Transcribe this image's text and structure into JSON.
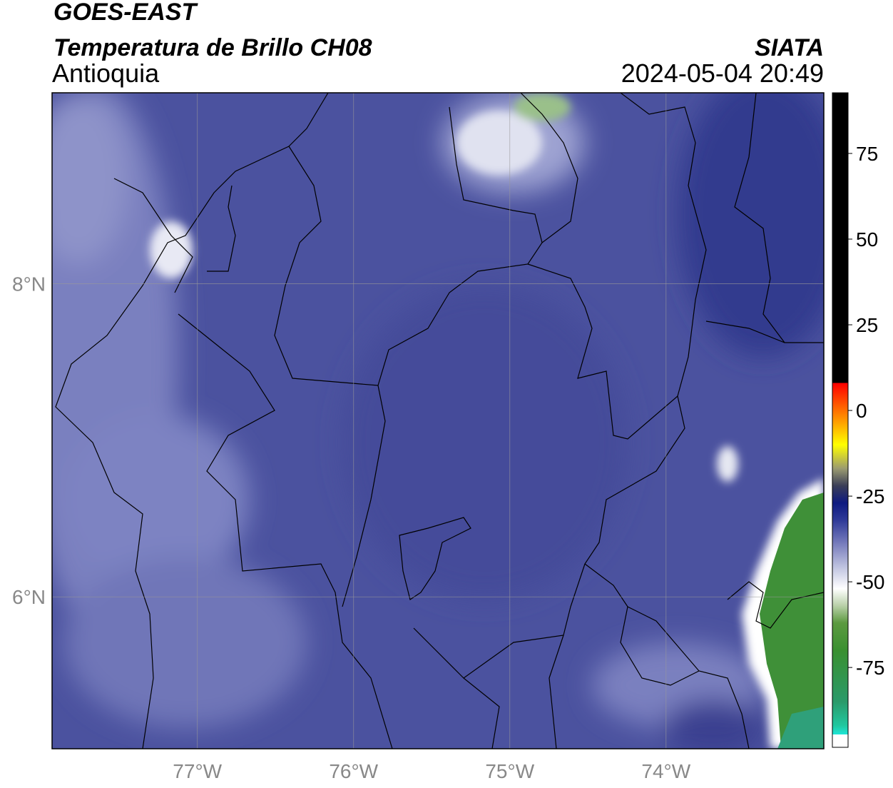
{
  "header": {
    "title": "GOES-EAST",
    "subtitle": "Temperatura de Brillo CH08",
    "region": "Antioquia",
    "source": "SIATA",
    "timestamp": "2024-05-04 20:49"
  },
  "map": {
    "xlim": [
      -77.93,
      -72.99
    ],
    "ylim": [
      5.03,
      9.22
    ],
    "xticks": [
      {
        "value": -77,
        "label": "77°W"
      },
      {
        "value": -76,
        "label": "76°W"
      },
      {
        "value": -75,
        "label": "75°W"
      },
      {
        "value": -74,
        "label": "74°W"
      }
    ],
    "yticks": [
      {
        "value": 6,
        "label": "6°N"
      },
      {
        "value": 8,
        "label": "8°N"
      }
    ],
    "grid": true
  },
  "colorbar": {
    "lim": [
      -98.3,
      92.7
    ],
    "ticks": [
      -75,
      -50,
      -25,
      0,
      25,
      50,
      75
    ],
    "stops": [
      {
        "value": -98.3,
        "color": "#ffffff"
      },
      {
        "value": -94.5,
        "color": "#ffffff"
      },
      {
        "value": -94.5,
        "color": "#1ee6d6"
      },
      {
        "value": -92,
        "color": "#20c8a0"
      },
      {
        "value": -85,
        "color": "#2a9a6a"
      },
      {
        "value": -70,
        "color": "#3a9030"
      },
      {
        "value": -62,
        "color": "#5c9a40"
      },
      {
        "value": -57,
        "color": "#b8d0a8"
      },
      {
        "value": -52,
        "color": "#ffffff"
      },
      {
        "value": -45,
        "color": "#b8bcdc"
      },
      {
        "value": -38,
        "color": "#6e74b8"
      },
      {
        "value": -32,
        "color": "#2f3a98"
      },
      {
        "value": -27,
        "color": "#0e1a80"
      },
      {
        "value": -22,
        "color": "#3a3e58"
      },
      {
        "value": -17,
        "color": "#9a9a70"
      },
      {
        "value": -10,
        "color": "#ffff00"
      },
      {
        "value": -3,
        "color": "#ff9a00"
      },
      {
        "value": 8,
        "color": "#ff0000"
      },
      {
        "value": 8,
        "color": "#000000"
      },
      {
        "value": 92.7,
        "color": "#000000"
      }
    ]
  }
}
